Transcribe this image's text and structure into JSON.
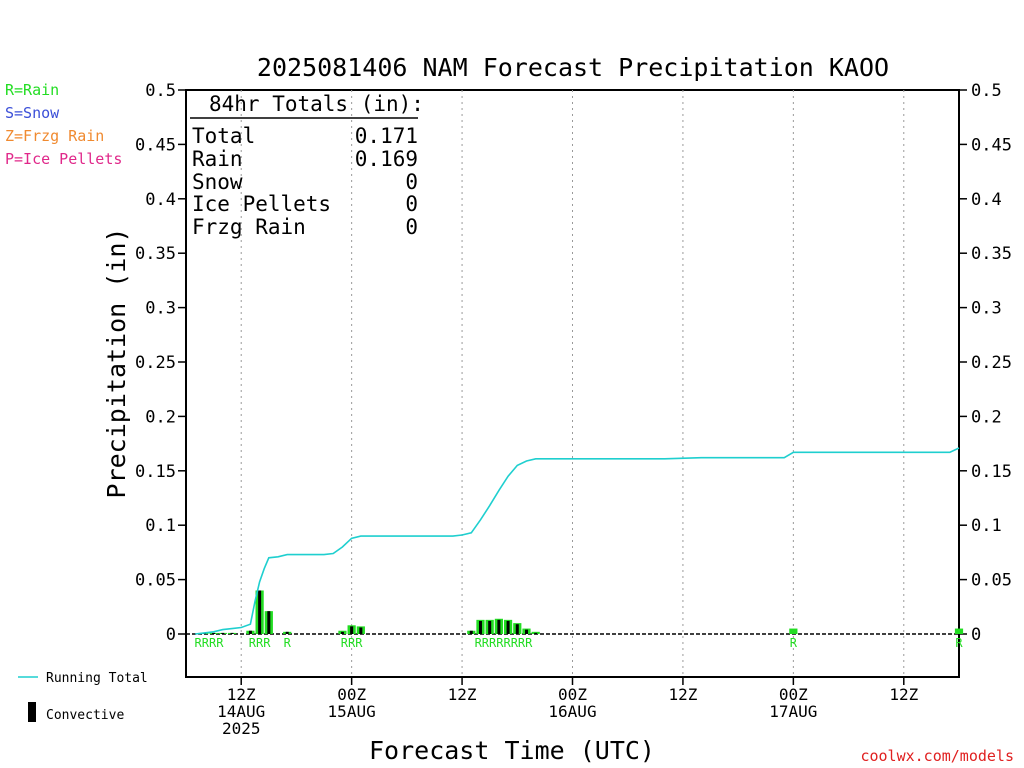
{
  "chart_data": {
    "type": "bar",
    "title": "2025081406 NAM Forecast Precipitation KAOO",
    "ylabel": "Precipitation (in)",
    "xlabel": "Forecast Time (UTC)",
    "ylim": [
      0,
      0.5
    ],
    "y_ticks": [
      "0.5",
      "0.45",
      "0.4",
      "0.35",
      "0.3",
      "0.25",
      "0.2",
      "0.15",
      "0.1",
      "0.05",
      "0"
    ],
    "x_range_hours": [
      0,
      84
    ],
    "x_ticks": [
      {
        "hour": 6,
        "line1": "12Z",
        "line2": "14AUG",
        "line3": "2025"
      },
      {
        "hour": 18,
        "line1": "00Z",
        "line2": "15AUG",
        "line3": ""
      },
      {
        "hour": 30,
        "line1": "12Z",
        "line2": "",
        "line3": ""
      },
      {
        "hour": 42,
        "line1": "00Z",
        "line2": "16AUG",
        "line3": ""
      },
      {
        "hour": 54,
        "line1": "12Z",
        "line2": "",
        "line3": ""
      },
      {
        "hour": 66,
        "line1": "00Z",
        "line2": "17AUG",
        "line3": ""
      },
      {
        "hour": 78,
        "line1": "12Z",
        "line2": "",
        "line3": ""
      }
    ],
    "grid": "vertical dotted",
    "type_legend": [
      {
        "label": "R=Rain",
        "color": "#22dd22"
      },
      {
        "label": "S=Snow",
        "color": "#3b4fd8"
      },
      {
        "label": "Z=Frzg Rain",
        "color": "#f08a30"
      },
      {
        "label": "P=Ice Pellets",
        "color": "#e0288a"
      }
    ],
    "series_legend": [
      {
        "label": "Running Total",
        "color": "#1fcfcf"
      },
      {
        "label": "Convective",
        "color": "#000000"
      }
    ],
    "totals": {
      "header": "84hr Totals (in):",
      "rows": [
        {
          "label": "Total",
          "value": "0.171"
        },
        {
          "label": "Rain",
          "value": "0.169"
        },
        {
          "label": "Snow",
          "value": "0"
        },
        {
          "label": "Ice Pellets",
          "value": "0"
        },
        {
          "label": "Frzg Rain",
          "value": "0"
        }
      ]
    },
    "bars": [
      {
        "hour": 2,
        "precip": 0.001,
        "convective": 0.001
      },
      {
        "hour": 3,
        "precip": 0.001,
        "convective": 0.001
      },
      {
        "hour": 4,
        "precip": 0.001,
        "convective": 0.001
      },
      {
        "hour": 5,
        "precip": 0.001,
        "convective": 0.001
      },
      {
        "hour": 7,
        "precip": 0.003,
        "convective": 0.003
      },
      {
        "hour": 8,
        "precip": 0.04,
        "convective": 0.04
      },
      {
        "hour": 9,
        "precip": 0.021,
        "convective": 0.021
      },
      {
        "hour": 11,
        "precip": 0.002,
        "convective": 0.002
      },
      {
        "hour": 17,
        "precip": 0.003,
        "convective": 0.002
      },
      {
        "hour": 18,
        "precip": 0.008,
        "convective": 0.007
      },
      {
        "hour": 19,
        "precip": 0.007,
        "convective": 0.006
      },
      {
        "hour": 31,
        "precip": 0.003,
        "convective": 0.003
      },
      {
        "hour": 32,
        "precip": 0.013,
        "convective": 0.012
      },
      {
        "hour": 33,
        "precip": 0.013,
        "convective": 0.012
      },
      {
        "hour": 34,
        "precip": 0.014,
        "convective": 0.013
      },
      {
        "hour": 35,
        "precip": 0.013,
        "convective": 0.012
      },
      {
        "hour": 36,
        "precip": 0.01,
        "convective": 0.009
      },
      {
        "hour": 37,
        "precip": 0.005,
        "convective": 0.004
      },
      {
        "hour": 38,
        "precip": 0.002,
        "convective": 0.001
      },
      {
        "hour": 66,
        "precip": 0.005,
        "convective": 0.0
      },
      {
        "hour": 84,
        "precip": 0.005,
        "convective": 0.0
      }
    ],
    "running_total": {
      "x": [
        1,
        2,
        3,
        4,
        5,
        6,
        7,
        7.5,
        8,
        8.5,
        9,
        10,
        11,
        13,
        15,
        16,
        17,
        18,
        19,
        20,
        25,
        29,
        30,
        31,
        32,
        33,
        34,
        35,
        36,
        37,
        38,
        40,
        44,
        52,
        56,
        65,
        66,
        67,
        75,
        83,
        84
      ],
      "y": [
        0,
        0.001,
        0.002,
        0.004,
        0.005,
        0.006,
        0.009,
        0.03,
        0.048,
        0.06,
        0.07,
        0.071,
        0.073,
        0.073,
        0.073,
        0.074,
        0.08,
        0.088,
        0.09,
        0.09,
        0.09,
        0.09,
        0.091,
        0.093,
        0.105,
        0.118,
        0.132,
        0.145,
        0.155,
        0.159,
        0.161,
        0.161,
        0.161,
        0.161,
        0.162,
        0.162,
        0.167,
        0.167,
        0.167,
        0.167,
        0.171
      ]
    },
    "type_codes": [
      {
        "hour": 2.5,
        "code": "RRRR"
      },
      {
        "hour": 8,
        "code": "RRR"
      },
      {
        "hour": 11,
        "code": "R"
      },
      {
        "hour": 18,
        "code": "RRR"
      },
      {
        "hour": 34.5,
        "code": "RRRRRRRR"
      },
      {
        "hour": 66,
        "code": "R"
      },
      {
        "hour": 84,
        "code": "R"
      }
    ]
  },
  "credit": "coolwx.com/models"
}
